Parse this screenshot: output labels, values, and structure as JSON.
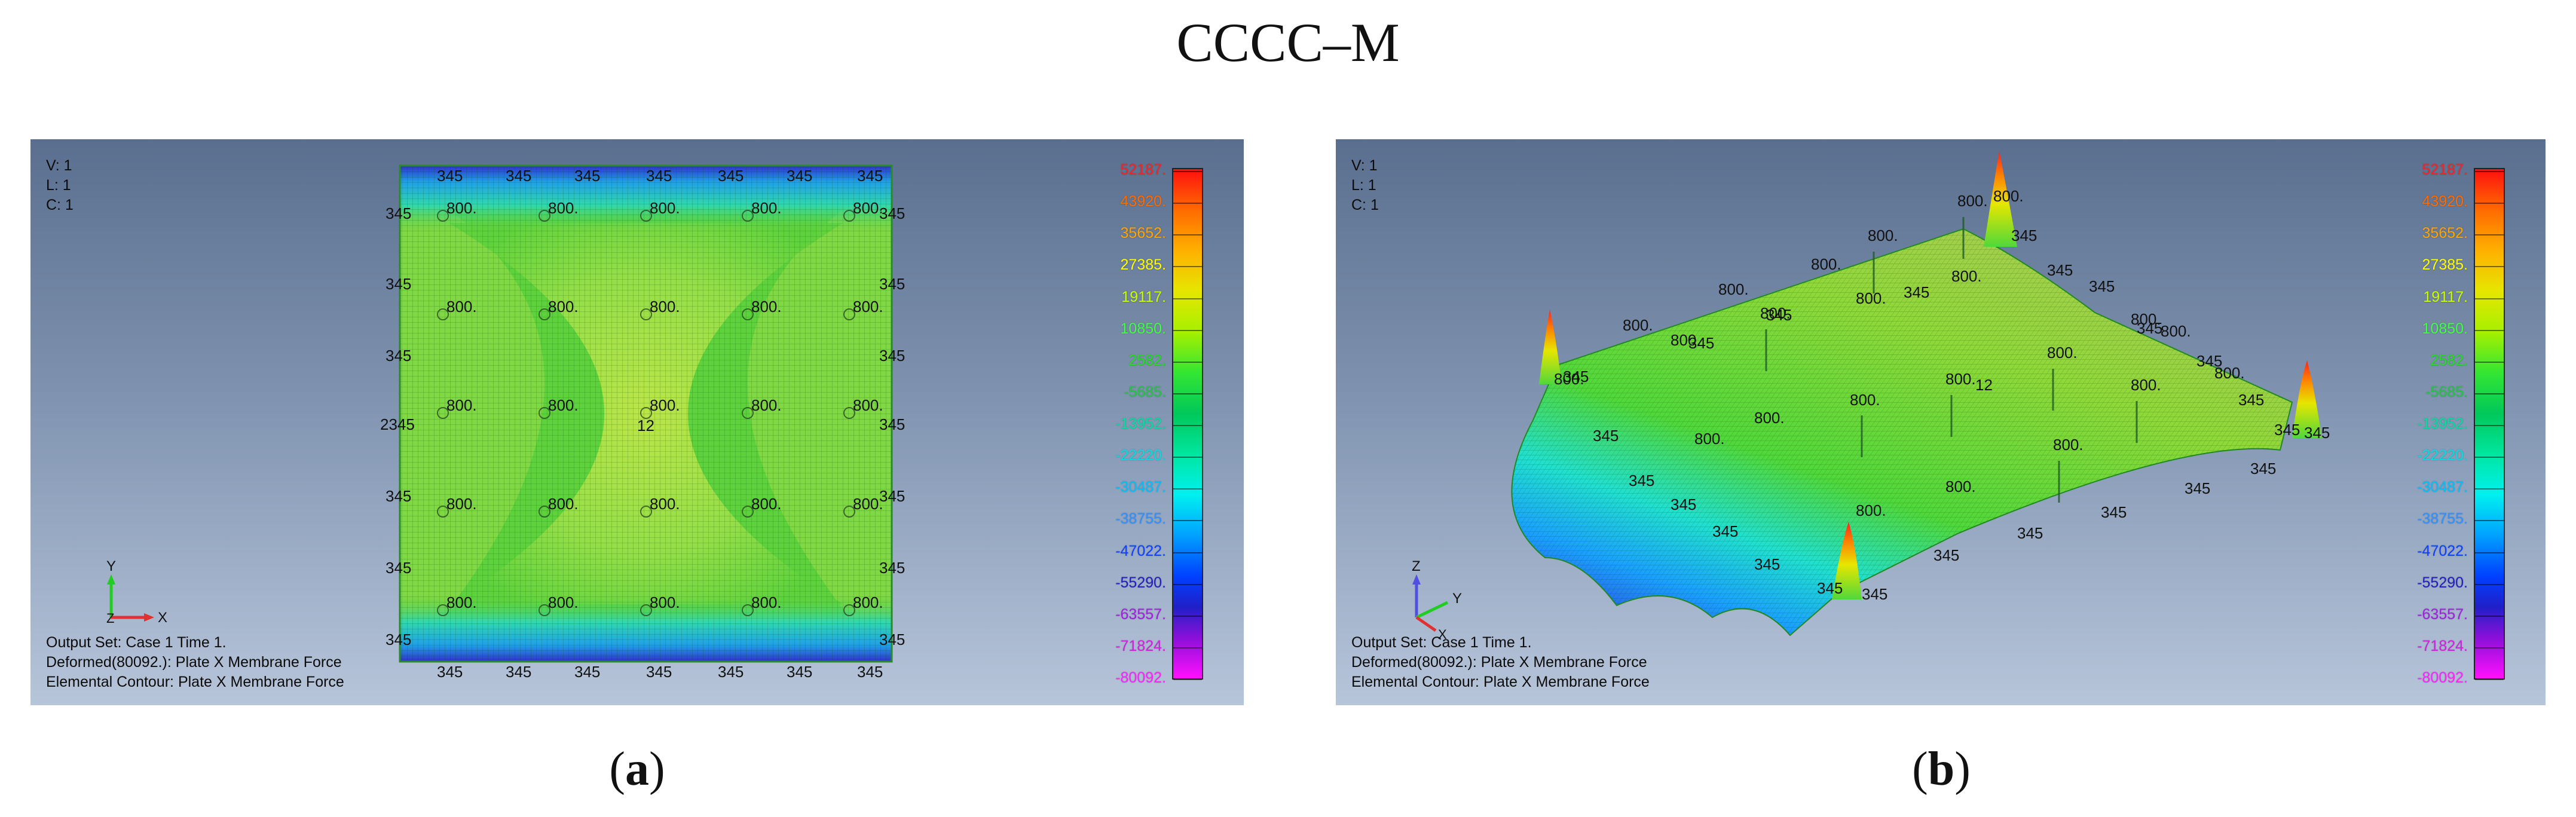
{
  "figure_title": "CCCC–M",
  "panels": {
    "a": {
      "letter": "a",
      "info": [
        "V: 1",
        "L: 1",
        "C: 1"
      ],
      "output": [
        "Output Set: Case 1 Time 1.",
        "Deformed(80092.): Plate X Membrane Force",
        "Elemental Contour: Plate X Membrane Force"
      ],
      "triad": {
        "y": "Y",
        "x": "X",
        "z": "Z"
      },
      "labels": {
        "edge": "345",
        "load": "800.",
        "center": "12",
        "left_overlap": "2345"
      }
    },
    "b": {
      "letter": "b",
      "info": [
        "V: 1",
        "L: 1",
        "C: 1"
      ],
      "output": [
        "Output Set: Case 1 Time 1.",
        "Deformed(80092.): Plate X Membrane Force",
        "Elemental Contour: Plate X Membrane Force"
      ],
      "triad": {
        "z": "Z",
        "y": "Y",
        "x": "X"
      },
      "labels": {
        "edge": "345",
        "load": "800.",
        "center": "12"
      }
    }
  },
  "legend": {
    "values": [
      "52187.",
      "43920.",
      "35652.",
      "27385.",
      "19117.",
      "10850.",
      "2582.",
      "-5685.",
      "-13952.",
      "-22220.",
      "-30487.",
      "-38755.",
      "-47022.",
      "-55290.",
      "-63557.",
      "-71824.",
      "-80092."
    ],
    "colors": [
      "#ff2020",
      "#ff6a00",
      "#ffa500",
      "#ffff00",
      "#c8ff00",
      "#40ff40",
      "#20e020",
      "#20c840",
      "#00e0a0",
      "#00e0e0",
      "#00c0ff",
      "#3090ff",
      "#1040ff",
      "#2020c0",
      "#a020e0",
      "#d020e0",
      "#ff20ff"
    ]
  }
}
